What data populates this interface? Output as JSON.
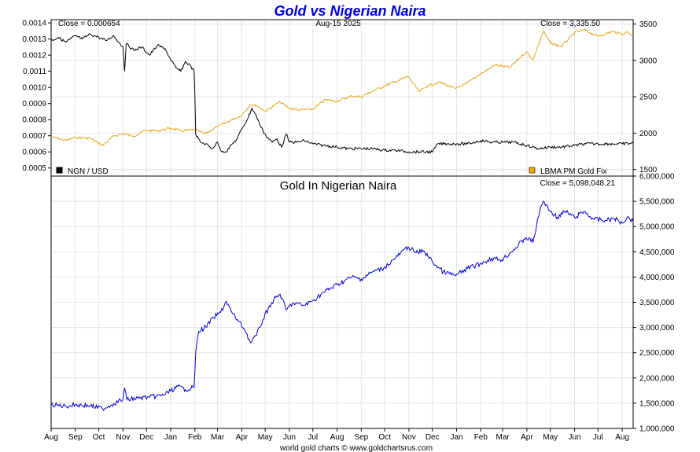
{
  "chart_data": [
    {
      "type": "line",
      "title": "Gold vs Nigerian Naira",
      "date_label": "Aug-15  2025",
      "x_labels": [
        "Aug",
        "Sep",
        "Oct",
        "Nov",
        "Dec",
        "Jan",
        "Feb",
        "Mar",
        "Apr",
        "May",
        "Jun",
        "Jul",
        "Aug",
        "Sep",
        "Oct",
        "Nov",
        "Dec",
        "Jan",
        "Feb",
        "Mar",
        "Apr",
        "May",
        "Jun",
        "Jul",
        "Aug"
      ],
      "x_range": [
        "2023-08-01",
        "2025-08-15"
      ],
      "left_axis": {
        "ylim": [
          0.00045,
          0.00142
        ],
        "ticks": [
          0.0005,
          0.0006,
          0.0007,
          0.0008,
          0.0009,
          0.001,
          0.0011,
          0.0012,
          0.0013,
          0.0014
        ]
      },
      "right_axis": {
        "ylim": [
          1410,
          3560
        ],
        "ticks": [
          1500,
          2000,
          2500,
          3000,
          3500
        ]
      },
      "series": [
        {
          "name": "NGN / USD",
          "axis": "left",
          "color": "#000000",
          "close_label": "Close = 0.000654",
          "points": [
            [
              "2023-08-01",
              0.00129
            ],
            [
              "2023-08-10",
              0.00131
            ],
            [
              "2023-08-20",
              0.00128
            ],
            [
              "2023-09-01",
              0.00132
            ],
            [
              "2023-09-10",
              0.0013
            ],
            [
              "2023-09-20",
              0.00133
            ],
            [
              "2023-10-01",
              0.00131
            ],
            [
              "2023-10-10",
              0.00129
            ],
            [
              "2023-10-20",
              0.00132
            ],
            [
              "2023-11-01",
              0.00125
            ],
            [
              "2023-11-03",
              0.0011
            ],
            [
              "2023-11-05",
              0.00127
            ],
            [
              "2023-11-15",
              0.00123
            ],
            [
              "2023-11-25",
              0.00125
            ],
            [
              "2023-12-05",
              0.0012
            ],
            [
              "2023-12-15",
              0.00126
            ],
            [
              "2023-12-25",
              0.00124
            ],
            [
              "2024-01-01",
              0.00117
            ],
            [
              "2024-01-08",
              0.00112
            ],
            [
              "2024-01-14",
              0.0011
            ],
            [
              "2024-01-20",
              0.00116
            ],
            [
              "2024-01-27",
              0.00113
            ],
            [
              "2024-01-31",
              0.0011
            ],
            [
              "2024-02-01",
              0.00095
            ],
            [
              "2024-02-02",
              0.00071
            ],
            [
              "2024-02-08",
              0.00066
            ],
            [
              "2024-02-15",
              0.00065
            ],
            [
              "2024-02-23",
              0.00062
            ],
            [
              "2024-03-01",
              0.00066
            ],
            [
              "2024-03-05",
              0.00061
            ],
            [
              "2024-03-12",
              0.0006
            ],
            [
              "2024-03-20",
              0.00065
            ],
            [
              "2024-03-26",
              0.00068
            ],
            [
              "2024-04-02",
              0.00075
            ],
            [
              "2024-04-08",
              0.0008
            ],
            [
              "2024-04-14",
              0.00087
            ],
            [
              "2024-04-20",
              0.00082
            ],
            [
              "2024-04-26",
              0.00075
            ],
            [
              "2024-05-02",
              0.0007
            ],
            [
              "2024-05-10",
              0.00066
            ],
            [
              "2024-05-16",
              0.00068
            ],
            [
              "2024-05-22",
              0.00063
            ],
            [
              "2024-05-28",
              0.00071
            ],
            [
              "2024-06-01",
              0.00066
            ],
            [
              "2024-06-10",
              0.00066
            ],
            [
              "2024-06-20",
              0.00067
            ],
            [
              "2024-07-01",
              0.00065
            ],
            [
              "2024-07-15",
              0.00064
            ],
            [
              "2024-08-01",
              0.00063
            ],
            [
              "2024-08-15",
              0.00062
            ],
            [
              "2024-09-01",
              0.00062
            ],
            [
              "2024-09-15",
              0.00062
            ],
            [
              "2024-10-01",
              0.00061
            ],
            [
              "2024-10-15",
              0.00061
            ],
            [
              "2024-11-01",
              0.0006
            ],
            [
              "2024-11-15",
              0.0006
            ],
            [
              "2024-12-01",
              0.0006
            ],
            [
              "2024-12-08",
              0.00065
            ],
            [
              "2024-12-20",
              0.00065
            ],
            [
              "2025-01-01",
              0.00065
            ],
            [
              "2025-01-15",
              0.00065
            ],
            [
              "2025-02-01",
              0.00067
            ],
            [
              "2025-02-15",
              0.00066
            ],
            [
              "2025-03-01",
              0.00066
            ],
            [
              "2025-03-15",
              0.00066
            ],
            [
              "2025-04-01",
              0.00064
            ],
            [
              "2025-04-15",
              0.00062
            ],
            [
              "2025-05-01",
              0.00063
            ],
            [
              "2025-05-15",
              0.00063
            ],
            [
              "2025-06-01",
              0.00064
            ],
            [
              "2025-06-15",
              0.00065
            ],
            [
              "2025-07-01",
              0.00065
            ],
            [
              "2025-07-15",
              0.00065
            ],
            [
              "2025-08-01",
              0.00065
            ],
            [
              "2025-08-15",
              0.000654
            ]
          ]
        },
        {
          "name": "LBMA PM Gold Fix",
          "axis": "right",
          "color": "#E8A317",
          "close_label": "Close = 3,335.50",
          "points": [
            [
              "2023-08-01",
              1950
            ],
            [
              "2023-08-20",
              1900
            ],
            [
              "2023-09-01",
              1940
            ],
            [
              "2023-09-20",
              1930
            ],
            [
              "2023-10-06",
              1830
            ],
            [
              "2023-10-20",
              1960
            ],
            [
              "2023-11-01",
              1990
            ],
            [
              "2023-11-15",
              1960
            ],
            [
              "2023-11-30",
              2040
            ],
            [
              "2023-12-15",
              2030
            ],
            [
              "2024-01-01",
              2070
            ],
            [
              "2024-01-15",
              2030
            ],
            [
              "2024-02-01",
              2050
            ],
            [
              "2024-02-14",
              1990
            ],
            [
              "2024-03-01",
              2090
            ],
            [
              "2024-03-15",
              2160
            ],
            [
              "2024-04-01",
              2250
            ],
            [
              "2024-04-12",
              2390
            ],
            [
              "2024-04-20",
              2380
            ],
            [
              "2024-05-01",
              2300
            ],
            [
              "2024-05-20",
              2430
            ],
            [
              "2024-06-01",
              2340
            ],
            [
              "2024-06-15",
              2320
            ],
            [
              "2024-07-01",
              2330
            ],
            [
              "2024-07-17",
              2460
            ],
            [
              "2024-08-01",
              2440
            ],
            [
              "2024-08-20",
              2510
            ],
            [
              "2024-09-01",
              2500
            ],
            [
              "2024-09-20",
              2600
            ],
            [
              "2024-10-01",
              2650
            ],
            [
              "2024-10-20",
              2730
            ],
            [
              "2024-10-31",
              2780
            ],
            [
              "2024-11-14",
              2570
            ],
            [
              "2024-11-25",
              2650
            ],
            [
              "2024-12-10",
              2700
            ],
            [
              "2024-12-31",
              2610
            ],
            [
              "2025-01-15",
              2690
            ],
            [
              "2025-01-31",
              2810
            ],
            [
              "2025-02-20",
              2940
            ],
            [
              "2025-03-10",
              2900
            ],
            [
              "2025-03-31",
              3120
            ],
            [
              "2025-04-09",
              3010
            ],
            [
              "2025-04-22",
              3400
            ],
            [
              "2025-05-01",
              3240
            ],
            [
              "2025-05-15",
              3190
            ],
            [
              "2025-06-01",
              3380
            ],
            [
              "2025-06-13",
              3420
            ],
            [
              "2025-07-01",
              3330
            ],
            [
              "2025-07-20",
              3400
            ],
            [
              "2025-08-01",
              3360
            ],
            [
              "2025-08-08",
              3390
            ],
            [
              "2025-08-15",
              3335.5
            ]
          ]
        }
      ]
    },
    {
      "type": "line",
      "title": "Gold In Nigerian Naira",
      "attribution": "world gold charts © www.goldchartsrus.com",
      "x_range": [
        "2023-08-01",
        "2025-08-15"
      ],
      "right_axis": {
        "ylim": [
          1000000,
          6000000
        ],
        "ticks": [
          1000000,
          1500000,
          2000000,
          2500000,
          3000000,
          3500000,
          4000000,
          4500000,
          5000000,
          5500000,
          6000000
        ]
      },
      "series": [
        {
          "name": "Gold In Nigerian Naira",
          "axis": "right",
          "color": "#0000DD",
          "close_label": "Close = 5,098,048.21",
          "points": [
            [
              "2023-08-01",
              1470000
            ],
            [
              "2023-08-20",
              1440000
            ],
            [
              "2023-09-01",
              1470000
            ],
            [
              "2023-09-20",
              1450000
            ],
            [
              "2023-10-06",
              1390000
            ],
            [
              "2023-10-20",
              1490000
            ],
            [
              "2023-11-01",
              1580000
            ],
            [
              "2023-11-03",
              1800000
            ],
            [
              "2023-11-06",
              1570000
            ],
            [
              "2023-11-20",
              1600000
            ],
            [
              "2023-12-05",
              1620000
            ],
            [
              "2023-12-20",
              1650000
            ],
            [
              "2024-01-01",
              1740000
            ],
            [
              "2024-01-10",
              1830000
            ],
            [
              "2024-01-20",
              1770000
            ],
            [
              "2024-01-31",
              1820000
            ],
            [
              "2024-02-02",
              2500000
            ],
            [
              "2024-02-06",
              2920000
            ],
            [
              "2024-02-15",
              3010000
            ],
            [
              "2024-02-25",
              3200000
            ],
            [
              "2024-03-05",
              3300000
            ],
            [
              "2024-03-12",
              3520000
            ],
            [
              "2024-03-20",
              3280000
            ],
            [
              "2024-03-28",
              3120000
            ],
            [
              "2024-04-05",
              2960000
            ],
            [
              "2024-04-12",
              2700000
            ],
            [
              "2024-04-20",
              2850000
            ],
            [
              "2024-04-28",
              3150000
            ],
            [
              "2024-05-05",
              3380000
            ],
            [
              "2024-05-12",
              3550000
            ],
            [
              "2024-05-20",
              3660000
            ],
            [
              "2024-05-28",
              3350000
            ],
            [
              "2024-06-05",
              3480000
            ],
            [
              "2024-06-20",
              3440000
            ],
            [
              "2024-07-01",
              3530000
            ],
            [
              "2024-07-15",
              3700000
            ],
            [
              "2024-08-01",
              3850000
            ],
            [
              "2024-08-20",
              4000000
            ],
            [
              "2024-09-01",
              3960000
            ],
            [
              "2024-09-15",
              4100000
            ],
            [
              "2024-09-30",
              4180000
            ],
            [
              "2024-10-15",
              4380000
            ],
            [
              "2024-10-31",
              4600000
            ],
            [
              "2024-11-10",
              4480000
            ],
            [
              "2024-11-20",
              4520000
            ],
            [
              "2024-12-01",
              4300000
            ],
            [
              "2024-12-15",
              4100000
            ],
            [
              "2024-12-31",
              4030000
            ],
            [
              "2025-01-15",
              4170000
            ],
            [
              "2025-01-31",
              4260000
            ],
            [
              "2025-02-15",
              4370000
            ],
            [
              "2025-02-28",
              4340000
            ],
            [
              "2025-03-15",
              4540000
            ],
            [
              "2025-03-31",
              4780000
            ],
            [
              "2025-04-09",
              4700000
            ],
            [
              "2025-04-18",
              5350000
            ],
            [
              "2025-04-22",
              5500000
            ],
            [
              "2025-04-30",
              5320000
            ],
            [
              "2025-05-10",
              5180000
            ],
            [
              "2025-05-20",
              5300000
            ],
            [
              "2025-06-01",
              5180000
            ],
            [
              "2025-06-13",
              5300000
            ],
            [
              "2025-06-25",
              5150000
            ],
            [
              "2025-07-10",
              5120000
            ],
            [
              "2025-07-22",
              5160000
            ],
            [
              "2025-08-01",
              5070000
            ],
            [
              "2025-08-08",
              5200000
            ],
            [
              "2025-08-15",
              5098048.21
            ]
          ]
        }
      ]
    }
  ]
}
